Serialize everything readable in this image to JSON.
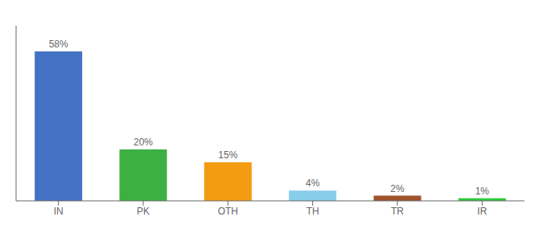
{
  "chart_data": {
    "type": "bar",
    "categories": [
      "IN",
      "PK",
      "OTH",
      "TH",
      "TR",
      "IR"
    ],
    "values": [
      58,
      20,
      15,
      4,
      2,
      1
    ],
    "value_labels": [
      "58%",
      "20%",
      "15%",
      "4%",
      "2%",
      "1%"
    ],
    "colors": [
      "#4472C4",
      "#3CB043",
      "#F39C12",
      "#87CEEB",
      "#A0522D",
      "#2ECC40"
    ],
    "ylim": [
      0,
      68
    ],
    "data_labels": true,
    "tick_labels": "x",
    "grid": false
  }
}
